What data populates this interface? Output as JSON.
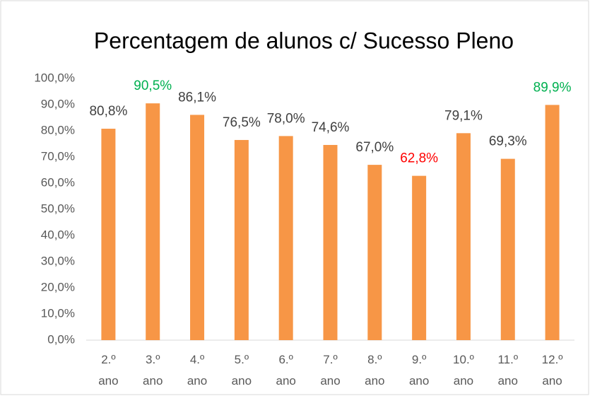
{
  "chart_data": {
    "type": "bar",
    "title": "Percentagem de alunos c/ Sucesso Pleno",
    "categories": [
      "2.º ano",
      "3.º ano",
      "4.º ano",
      "5.º ano",
      "6.º ano",
      "7.º ano",
      "8.º ano",
      "9.º ano",
      "10.º ano",
      "11.º ano",
      "12.º ano"
    ],
    "values": [
      80.8,
      90.5,
      86.1,
      76.5,
      78.0,
      74.6,
      67.0,
      62.8,
      79.1,
      69.3,
      89.9
    ],
    "value_labels": [
      "80,8%",
      "90,5%",
      "86,1%",
      "76,5%",
      "78,0%",
      "74,6%",
      "67,0%",
      "62,8%",
      "79,1%",
      "69,3%",
      "89,9%"
    ],
    "value_label_colors": [
      "#404040",
      "#00b050",
      "#404040",
      "#404040",
      "#404040",
      "#404040",
      "#404040",
      "#ff0000",
      "#404040",
      "#404040",
      "#00b050"
    ],
    "color": "#f79646",
    "ylim": [
      0,
      100
    ],
    "yticks": [
      {
        "value": 0,
        "label": "0,0%"
      },
      {
        "value": 10,
        "label": "10,0%"
      },
      {
        "value": 20,
        "label": "20,0%"
      },
      {
        "value": 30,
        "label": "30,0%"
      },
      {
        "value": 40,
        "label": "40,0%"
      },
      {
        "value": 50,
        "label": "50,0%"
      },
      {
        "value": 60,
        "label": "60,0%"
      },
      {
        "value": 70,
        "label": "70,0%"
      },
      {
        "value": 80,
        "label": "80,0%"
      },
      {
        "value": 90,
        "label": "90,0%"
      },
      {
        "value": 100,
        "label": "100,0%"
      }
    ],
    "grid": false
  }
}
